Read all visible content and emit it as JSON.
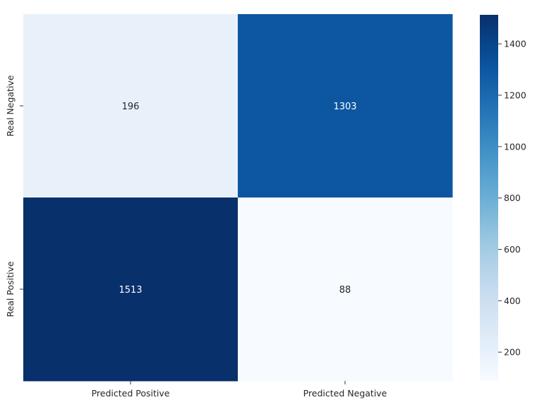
{
  "chart_data": {
    "type": "heatmap",
    "title": "",
    "xlabel": "",
    "ylabel": "",
    "x_categories": [
      "Predicted Positive",
      "Predicted Negative"
    ],
    "y_categories": [
      "Real Negative",
      "Real Positive"
    ],
    "values": [
      [
        196,
        1303
      ],
      [
        1513,
        88
      ]
    ],
    "colormap": "Blues",
    "colorbar": {
      "min": 88,
      "max": 1513,
      "ticks": [
        200,
        400,
        600,
        800,
        1000,
        1200,
        1400
      ]
    },
    "colors": {
      "low": "#f7fbff",
      "high": "#08306b",
      "text_dark": "#262626",
      "text_light": "#ffffff"
    }
  }
}
